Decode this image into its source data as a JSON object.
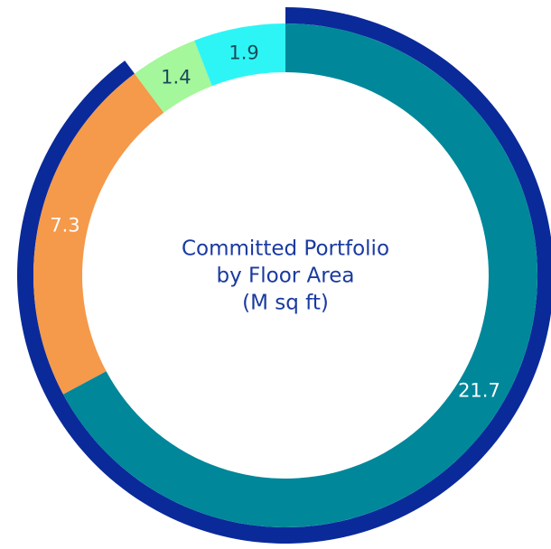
{
  "chart_data": {
    "type": "donut",
    "title": [
      "Committed Portfolio",
      "by Floor Area",
      "(M sq ft)"
    ],
    "categories": [
      null,
      null,
      null,
      null
    ],
    "values": [
      21.7,
      7.3,
      1.4,
      1.9
    ],
    "colors": [
      "#00879a",
      "#f5994a",
      "#a4f79a",
      "#2ef5f5"
    ],
    "label_colors": [
      "#ffffff",
      "#ffffff",
      "#1a4a5a",
      "#1a4a5a"
    ],
    "group": {
      "members": [
        0,
        1
      ],
      "color": "#0a2a9a"
    },
    "title_color": "#1a3aa0"
  }
}
